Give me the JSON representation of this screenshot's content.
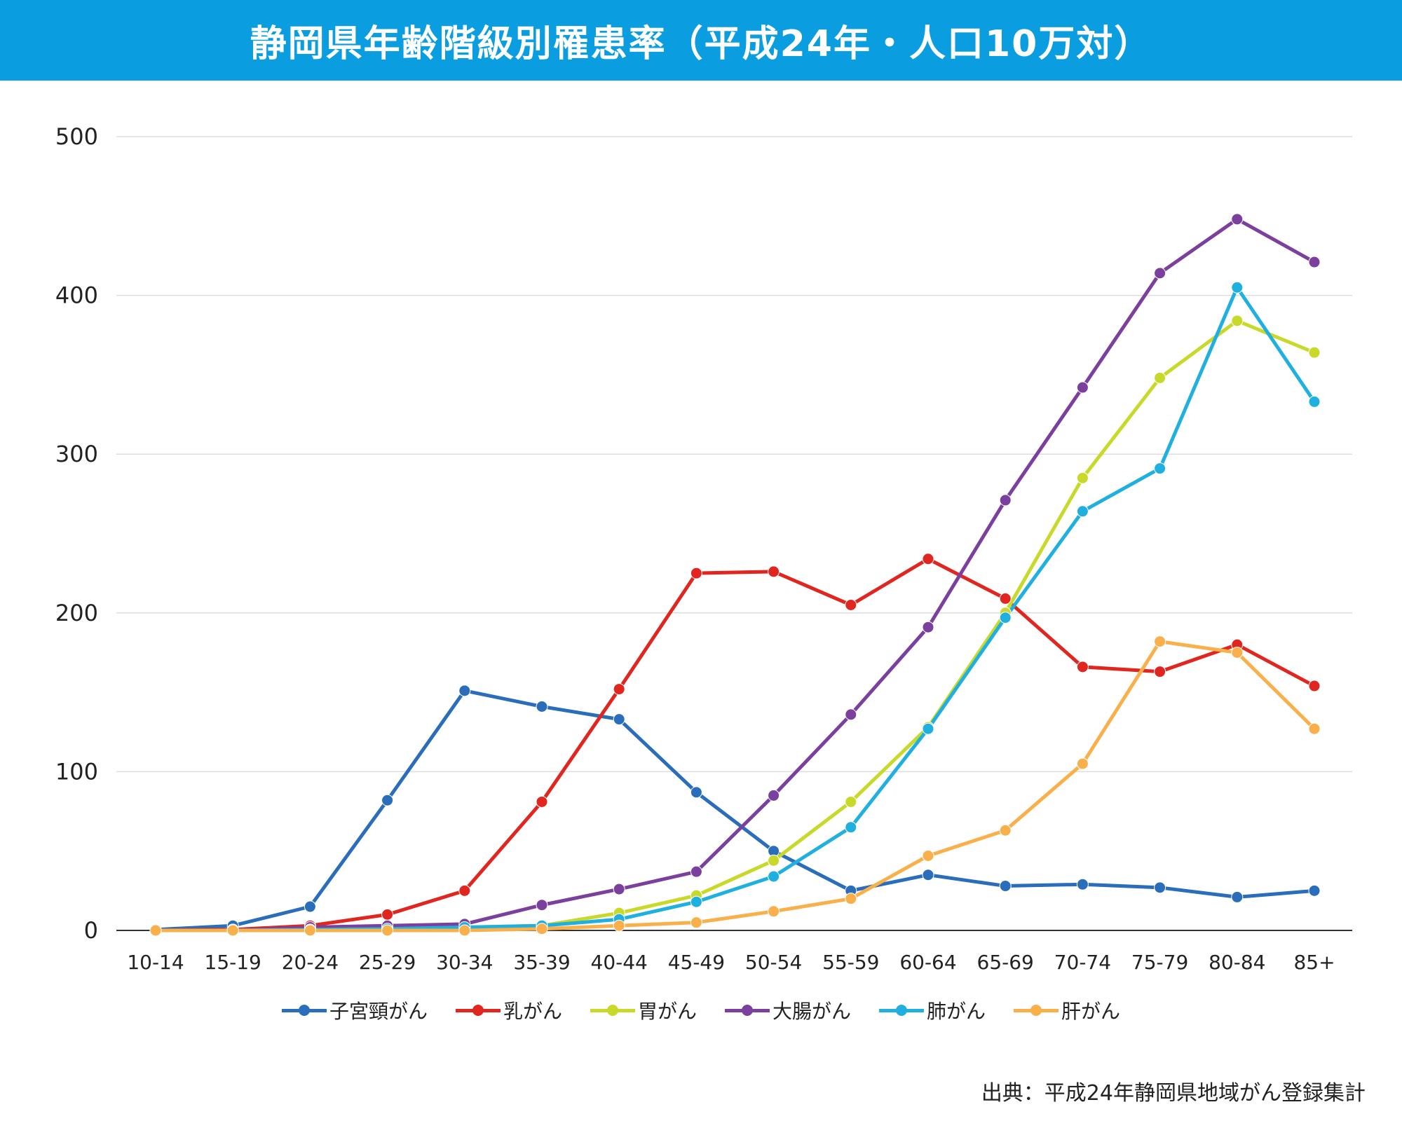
{
  "header": {
    "title": "静岡県年齢階級別罹患率（平成24年・人口10万対）"
  },
  "source": "出典：平成24年静岡県地域がん登録集計",
  "chart_data": {
    "type": "line",
    "title": "静岡県年齢階級別罹患率（平成24年・人口10万対）",
    "xlabel": "",
    "ylabel": "",
    "ylim": [
      0,
      500
    ],
    "yticks": [
      0,
      100,
      200,
      300,
      400,
      500
    ],
    "grid": true,
    "legend_position": "bottom",
    "categories": [
      "10-14",
      "15-19",
      "20-24",
      "25-29",
      "30-34",
      "35-39",
      "40-44",
      "45-49",
      "50-54",
      "55-59",
      "60-64",
      "65-69",
      "70-74",
      "75-79",
      "80-84",
      "85+"
    ],
    "series": [
      {
        "name": "子宮頸がん",
        "color": "#2a6ebb",
        "values": [
          0.5,
          3,
          15,
          82,
          151,
          141,
          133,
          87,
          50,
          25,
          35,
          28,
          29,
          27,
          21,
          25
        ]
      },
      {
        "name": "乳がん",
        "color": "#e0261f",
        "values": [
          0,
          0.5,
          3,
          10,
          25,
          81,
          152,
          225,
          226,
          205,
          234,
          209,
          166,
          163,
          180,
          154
        ]
      },
      {
        "name": "胃がん",
        "color": "#c8d92a",
        "values": [
          0,
          0,
          0.5,
          1,
          2,
          3,
          11,
          22,
          44,
          81,
          128,
          200,
          285,
          348,
          384,
          364
        ]
      },
      {
        "name": "大腸がん",
        "color": "#7b3f9e",
        "values": [
          0,
          0,
          2,
          3,
          4,
          16,
          26,
          37,
          85,
          136,
          191,
          271,
          342,
          414,
          448,
          421
        ]
      },
      {
        "name": "肺がん",
        "color": "#1fb0e0",
        "values": [
          0,
          0,
          0.5,
          1,
          2,
          3,
          7,
          18,
          34,
          65,
          127,
          197,
          264,
          291,
          405,
          333
        ]
      },
      {
        "name": "肝がん",
        "color": "#f9b04a",
        "values": [
          0,
          0,
          0,
          0,
          0,
          1,
          3,
          5,
          12,
          20,
          47,
          63,
          105,
          182,
          175,
          127
        ]
      }
    ]
  }
}
